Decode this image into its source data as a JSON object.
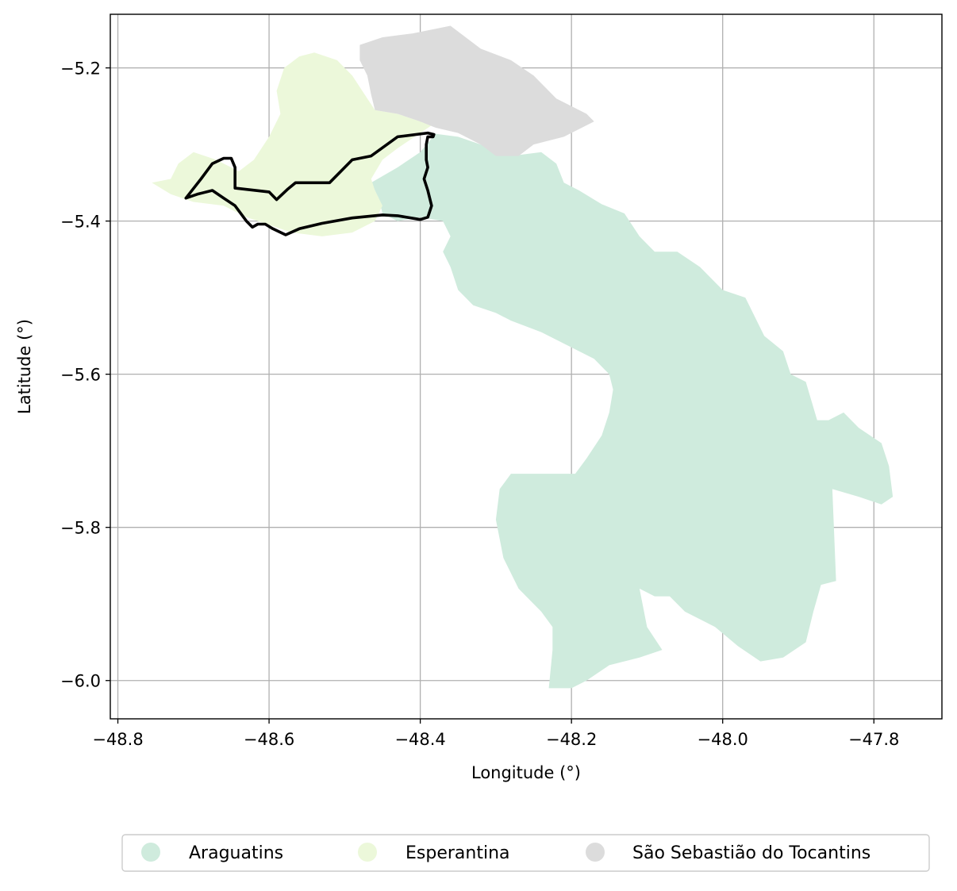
{
  "map": {
    "xlabel": "Longitude (°)",
    "ylabel": "Latitude (°)",
    "xlim": [
      -48.81,
      -47.71
    ],
    "ylim": [
      -6.05,
      -5.13
    ],
    "x_ticks": [
      {
        "value": -48.8,
        "label": "−48.8"
      },
      {
        "value": -48.6,
        "label": "−48.6"
      },
      {
        "value": -48.4,
        "label": "−48.4"
      },
      {
        "value": -48.2,
        "label": "−48.2"
      },
      {
        "value": -48.0,
        "label": "−48.0"
      },
      {
        "value": -47.8,
        "label": "−47.8"
      }
    ],
    "y_ticks": [
      {
        "value": -5.2,
        "label": "−5.2"
      },
      {
        "value": -5.4,
        "label": "−5.4"
      },
      {
        "value": -5.6,
        "label": "−5.6"
      },
      {
        "value": -5.8,
        "label": "−5.8"
      },
      {
        "value": -6.0,
        "label": "−6.0"
      }
    ],
    "grid": true,
    "legend_position": "bottom-center",
    "regions": [
      {
        "name": "Araguatins",
        "color": "#cfebdd",
        "polygon": [
          [
            -48.43,
            -5.33
          ],
          [
            -48.4,
            -5.31
          ],
          [
            -48.38,
            -5.286
          ],
          [
            -48.35,
            -5.29
          ],
          [
            -48.32,
            -5.3
          ],
          [
            -48.28,
            -5.315
          ],
          [
            -48.24,
            -5.31
          ],
          [
            -48.22,
            -5.325
          ],
          [
            -48.21,
            -5.35
          ],
          [
            -48.19,
            -5.36
          ],
          [
            -48.16,
            -5.378
          ],
          [
            -48.13,
            -5.39
          ],
          [
            -48.11,
            -5.42
          ],
          [
            -48.09,
            -5.44
          ],
          [
            -48.06,
            -5.44
          ],
          [
            -48.03,
            -5.46
          ],
          [
            -48.0,
            -5.49
          ],
          [
            -47.97,
            -5.5
          ],
          [
            -47.945,
            -5.55
          ],
          [
            -47.92,
            -5.57
          ],
          [
            -47.91,
            -5.6
          ],
          [
            -47.89,
            -5.61
          ],
          [
            -47.875,
            -5.66
          ],
          [
            -47.86,
            -5.66
          ],
          [
            -47.84,
            -5.65
          ],
          [
            -47.82,
            -5.67
          ],
          [
            -47.79,
            -5.69
          ],
          [
            -47.78,
            -5.72
          ],
          [
            -47.775,
            -5.76
          ],
          [
            -47.79,
            -5.77
          ],
          [
            -47.82,
            -5.76
          ],
          [
            -47.855,
            -5.75
          ],
          [
            -47.85,
            -5.87
          ],
          [
            -47.87,
            -5.875
          ],
          [
            -47.88,
            -5.91
          ],
          [
            -47.89,
            -5.95
          ],
          [
            -47.92,
            -5.97
          ],
          [
            -47.95,
            -5.975
          ],
          [
            -47.98,
            -5.955
          ],
          [
            -48.01,
            -5.93
          ],
          [
            -48.05,
            -5.91
          ],
          [
            -48.07,
            -5.89
          ],
          [
            -48.09,
            -5.89
          ],
          [
            -48.11,
            -5.88
          ],
          [
            -48.1,
            -5.93
          ],
          [
            -48.08,
            -5.96
          ],
          [
            -48.11,
            -5.97
          ],
          [
            -48.15,
            -5.98
          ],
          [
            -48.18,
            -6.0
          ],
          [
            -48.2,
            -6.01
          ],
          [
            -48.23,
            -6.01
          ],
          [
            -48.225,
            -5.96
          ],
          [
            -48.225,
            -5.93
          ],
          [
            -48.24,
            -5.91
          ],
          [
            -48.27,
            -5.88
          ],
          [
            -48.29,
            -5.84
          ],
          [
            -48.3,
            -5.79
          ],
          [
            -48.295,
            -5.75
          ],
          [
            -48.28,
            -5.73
          ],
          [
            -48.24,
            -5.73
          ],
          [
            -48.195,
            -5.73
          ],
          [
            -48.18,
            -5.71
          ],
          [
            -48.16,
            -5.68
          ],
          [
            -48.15,
            -5.65
          ],
          [
            -48.145,
            -5.62
          ],
          [
            -48.15,
            -5.6
          ],
          [
            -48.17,
            -5.58
          ],
          [
            -48.2,
            -5.565
          ],
          [
            -48.24,
            -5.545
          ],
          [
            -48.28,
            -5.53
          ],
          [
            -48.3,
            -5.52
          ],
          [
            -48.33,
            -5.51
          ],
          [
            -48.35,
            -5.49
          ],
          [
            -48.36,
            -5.46
          ],
          [
            -48.37,
            -5.44
          ],
          [
            -48.36,
            -5.42
          ],
          [
            -48.37,
            -5.4
          ],
          [
            -48.4,
            -5.395
          ],
          [
            -48.43,
            -5.4
          ],
          [
            -48.45,
            -5.39
          ],
          [
            -48.455,
            -5.37
          ],
          [
            -48.465,
            -5.35
          ]
        ]
      },
      {
        "name": "Esperantina",
        "color": "#ecf8da",
        "polygon": [
          [
            -48.755,
            -5.35
          ],
          [
            -48.73,
            -5.365
          ],
          [
            -48.7,
            -5.375
          ],
          [
            -48.66,
            -5.38
          ],
          [
            -48.63,
            -5.395
          ],
          [
            -48.6,
            -5.405
          ],
          [
            -48.57,
            -5.415
          ],
          [
            -48.53,
            -5.42
          ],
          [
            -48.49,
            -5.415
          ],
          [
            -48.46,
            -5.4
          ],
          [
            -48.45,
            -5.38
          ],
          [
            -48.46,
            -5.36
          ],
          [
            -48.465,
            -5.345
          ],
          [
            -48.45,
            -5.32
          ],
          [
            -48.43,
            -5.305
          ],
          [
            -48.4,
            -5.285
          ],
          [
            -48.385,
            -5.275
          ],
          [
            -48.4,
            -5.27
          ],
          [
            -48.43,
            -5.26
          ],
          [
            -48.46,
            -5.255
          ],
          [
            -48.47,
            -5.24
          ],
          [
            -48.49,
            -5.21
          ],
          [
            -48.51,
            -5.19
          ],
          [
            -48.54,
            -5.18
          ],
          [
            -48.56,
            -5.185
          ],
          [
            -48.58,
            -5.2
          ],
          [
            -48.59,
            -5.23
          ],
          [
            -48.585,
            -5.26
          ],
          [
            -48.6,
            -5.29
          ],
          [
            -48.62,
            -5.32
          ],
          [
            -48.64,
            -5.335
          ],
          [
            -48.67,
            -5.32
          ],
          [
            -48.7,
            -5.31
          ],
          [
            -48.72,
            -5.325
          ],
          [
            -48.73,
            -5.345
          ]
        ]
      },
      {
        "name": "São Sebastião do Tocantins",
        "color": "#dcdcdc",
        "polygon": [
          [
            -48.48,
            -5.17
          ],
          [
            -48.45,
            -5.16
          ],
          [
            -48.41,
            -5.155
          ],
          [
            -48.36,
            -5.145
          ],
          [
            -48.32,
            -5.175
          ],
          [
            -48.28,
            -5.19
          ],
          [
            -48.25,
            -5.21
          ],
          [
            -48.22,
            -5.24
          ],
          [
            -48.18,
            -5.26
          ],
          [
            -48.17,
            -5.27
          ],
          [
            -48.21,
            -5.29
          ],
          [
            -48.25,
            -5.3
          ],
          [
            -48.27,
            -5.315
          ],
          [
            -48.3,
            -5.315
          ],
          [
            -48.32,
            -5.3
          ],
          [
            -48.35,
            -5.285
          ],
          [
            -48.38,
            -5.278
          ],
          [
            -48.4,
            -5.27
          ],
          [
            -48.43,
            -5.26
          ],
          [
            -48.46,
            -5.255
          ],
          [
            -48.465,
            -5.235
          ],
          [
            -48.47,
            -5.21
          ],
          [
            -48.48,
            -5.19
          ]
        ]
      }
    ],
    "outline": {
      "color": "#000000",
      "polyline": [
        [
          -48.71,
          -5.37
        ],
        [
          -48.69,
          -5.345
        ],
        [
          -48.675,
          -5.325
        ],
        [
          -48.66,
          -5.318
        ],
        [
          -48.65,
          -5.318
        ],
        [
          -48.645,
          -5.33
        ],
        [
          -48.645,
          -5.357
        ],
        [
          -48.6,
          -5.362
        ],
        [
          -48.59,
          -5.372
        ],
        [
          -48.575,
          -5.358
        ],
        [
          -48.565,
          -5.35
        ],
        [
          -48.52,
          -5.35
        ],
        [
          -48.49,
          -5.32
        ],
        [
          -48.465,
          -5.315
        ],
        [
          -48.43,
          -5.29
        ],
        [
          -48.39,
          -5.285
        ],
        [
          -48.382,
          -5.287
        ],
        [
          -48.383,
          -5.29
        ],
        [
          -48.39,
          -5.29
        ],
        [
          -48.392,
          -5.3
        ],
        [
          -48.392,
          -5.32
        ],
        [
          -48.39,
          -5.33
        ],
        [
          -48.395,
          -5.345
        ],
        [
          -48.39,
          -5.36
        ],
        [
          -48.385,
          -5.38
        ],
        [
          -48.39,
          -5.395
        ],
        [
          -48.4,
          -5.398
        ],
        [
          -48.43,
          -5.393
        ],
        [
          -48.45,
          -5.392
        ],
        [
          -48.49,
          -5.396
        ],
        [
          -48.53,
          -5.403
        ],
        [
          -48.56,
          -5.41
        ],
        [
          -48.578,
          -5.418
        ],
        [
          -48.595,
          -5.41
        ],
        [
          -48.605,
          -5.404
        ],
        [
          -48.615,
          -5.404
        ],
        [
          -48.622,
          -5.408
        ],
        [
          -48.63,
          -5.4
        ],
        [
          -48.645,
          -5.38
        ],
        [
          -48.66,
          -5.37
        ],
        [
          -48.675,
          -5.36
        ],
        [
          -48.695,
          -5.365
        ],
        [
          -48.71,
          -5.37
        ]
      ]
    },
    "legend": [
      {
        "label": "Araguatins",
        "color": "#cfebdd"
      },
      {
        "label": "Esperantina",
        "color": "#ecf8da"
      },
      {
        "label": "São Sebastião do Tocantins",
        "color": "#dcdcdc"
      }
    ]
  }
}
